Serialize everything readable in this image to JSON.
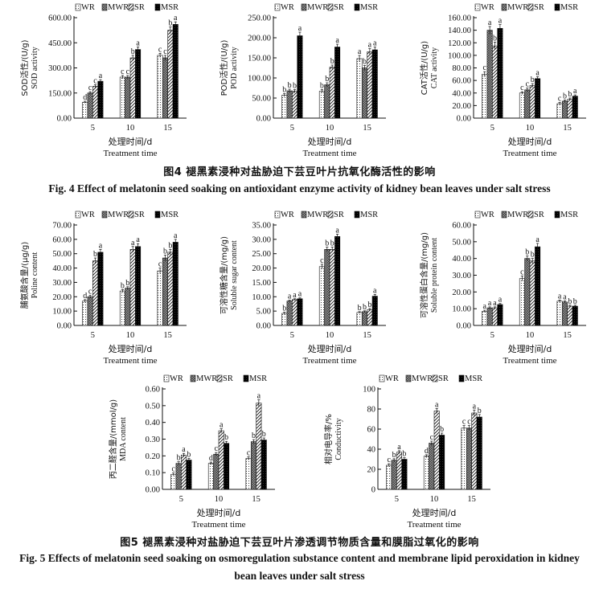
{
  "colors": {
    "axis": "#111111",
    "bar_fill_light": "#ffffff",
    "bar_dark": "#000000"
  },
  "fig4": {
    "caption_cn": "图4   褪黑素浸种对盐胁迫下芸豆叶片抗氧化酶活性的影响",
    "caption_en": "Fig. 4    Effect of melatonin seed soaking on antioxidant enzyme activity of kidney bean leaves under salt stress"
  },
  "fig5": {
    "caption_cn": "图5   褪黑素浸种对盐胁迫下芸豆叶片渗透调节物质含量和膜脂过氧化的影响",
    "caption_en_1": "Fig. 5    Effects of melatonin seed soaking on osmoregulation substance content and membrane lipid peroxidation in kidney",
    "caption_en_2": "bean leaves under salt stress"
  },
  "chart_data": [
    {
      "type": "bar",
      "id": "sod",
      "ylabel_cn": "SOD活性/(U/g)",
      "ylabel_en": "SOD activity",
      "xlabel_cn": "处理时间/d",
      "xlabel_en": "Treatment time",
      "categories": [
        "5",
        "10",
        "15"
      ],
      "ylim": [
        0,
        600
      ],
      "yticks": [
        0,
        150,
        300,
        450,
        600
      ],
      "ytick_labels": [
        "0.00",
        "150.00",
        "300.00",
        "450.00",
        "600.00"
      ],
      "legend": [
        "WR",
        "MWR",
        "SR",
        "MSR"
      ],
      "series": [
        {
          "name": "WR",
          "values": [
            95,
            245,
            375
          ],
          "errors": [
            6,
            10,
            12
          ],
          "sig": [
            "d",
            "c",
            "c"
          ]
        },
        {
          "name": "MWR",
          "values": [
            150,
            245,
            360
          ],
          "errors": [
            8,
            10,
            15
          ],
          "sig": [
            "c",
            "c",
            "c"
          ]
        },
        {
          "name": "SR",
          "values": [
            190,
            360,
            525
          ],
          "errors": [
            10,
            15,
            20
          ],
          "sig": [
            "c",
            "b",
            "b"
          ]
        },
        {
          "name": "MSR",
          "values": [
            220,
            410,
            560
          ],
          "errors": [
            10,
            15,
            15
          ],
          "sig": [
            "a",
            "a",
            "a"
          ]
        }
      ]
    },
    {
      "type": "bar",
      "id": "pod",
      "ylabel_cn": "POD活性/(U/g)",
      "ylabel_en": "POD activity",
      "xlabel_cn": "处理时间/d",
      "xlabel_en": "Treatment time",
      "categories": [
        "5",
        "10",
        "15"
      ],
      "ylim": [
        0,
        250
      ],
      "yticks": [
        0,
        50,
        100,
        150,
        200,
        250
      ],
      "ytick_labels": [
        "0.00",
        "50.00",
        "100.00",
        "150.00",
        "200.00",
        "250.00"
      ],
      "legend": [
        "WR",
        "MWR",
        "SR",
        "MSR"
      ],
      "series": [
        {
          "name": "WR",
          "values": [
            57,
            67,
            148
          ],
          "errors": [
            4,
            4,
            8
          ],
          "sig": [
            "b",
            "b",
            "a"
          ]
        },
        {
          "name": "MWR",
          "values": [
            68,
            83,
            125
          ],
          "errors": [
            4,
            5,
            6
          ],
          "sig": [
            "b",
            "b",
            "b"
          ]
        },
        {
          "name": "SR",
          "values": [
            67,
            127,
            165
          ],
          "errors": [
            4,
            5,
            8
          ],
          "sig": [
            "b",
            "b",
            "a"
          ]
        },
        {
          "name": "MSR",
          "values": [
            205,
            177,
            170
          ],
          "errors": [
            9,
            7,
            7
          ],
          "sig": [
            "a",
            "a",
            "a"
          ]
        }
      ]
    },
    {
      "type": "bar",
      "id": "cat",
      "ylabel_cn": "CAT活性/(U/g)",
      "ylabel_en": "CAT activity",
      "xlabel_cn": "处理时间/d",
      "xlabel_en": "Treatment time",
      "categories": [
        "5",
        "10",
        "15"
      ],
      "ylim": [
        0,
        160
      ],
      "yticks": [
        0,
        20,
        40,
        60,
        80,
        100,
        120,
        140,
        160
      ],
      "ytick_labels": [
        "0.00",
        "20.00",
        "40.00",
        "60.00",
        "80.00",
        "100.00",
        "120.00",
        "140.00",
        "160.00"
      ],
      "legend": [
        "WR",
        "MWR",
        "SR",
        "MSR"
      ],
      "series": [
        {
          "name": "WR",
          "values": [
            70,
            40,
            23
          ],
          "errors": [
            4,
            2,
            2
          ],
          "sig": [
            "c",
            "c",
            "c"
          ]
        },
        {
          "name": "MWR",
          "values": [
            140,
            45,
            27
          ],
          "errors": [
            6,
            3,
            2
          ],
          "sig": [
            "a",
            "c",
            "b"
          ]
        },
        {
          "name": "SR",
          "values": [
            115,
            52,
            30
          ],
          "errors": [
            6,
            3,
            2
          ],
          "sig": [
            "b",
            "b",
            "b"
          ]
        },
        {
          "name": "MSR",
          "values": [
            143,
            63,
            35
          ],
          "errors": [
            6,
            3,
            2
          ],
          "sig": [
            "a",
            "a",
            "a"
          ]
        }
      ]
    },
    {
      "type": "bar",
      "id": "proline",
      "ylabel_cn": "脯氨酸含量/(μg/g)",
      "ylabel_en": "Poline content",
      "xlabel_cn": "处理时间/d",
      "xlabel_en": "Treatment time",
      "categories": [
        "5",
        "10",
        "15"
      ],
      "ylim": [
        0,
        70
      ],
      "yticks": [
        0,
        10,
        20,
        30,
        40,
        50,
        60,
        70
      ],
      "ytick_labels": [
        "0.00",
        "10.00",
        "20.00",
        "30.00",
        "40.00",
        "50.00",
        "60.00",
        "70.00"
      ],
      "legend": [
        "WR",
        "MWR",
        "SR",
        "MSR"
      ],
      "series": [
        {
          "name": "WR",
          "values": [
            17,
            24,
            38
          ],
          "errors": [
            1,
            1,
            2
          ],
          "sig": [
            "d",
            "b",
            "c"
          ]
        },
        {
          "name": "MWR",
          "values": [
            20,
            26,
            47
          ],
          "errors": [
            1,
            1,
            2
          ],
          "sig": [
            "c",
            "b",
            "b"
          ]
        },
        {
          "name": "SR",
          "values": [
            45,
            53,
            51
          ],
          "errors": [
            2,
            2,
            2
          ],
          "sig": [
            "b",
            "a",
            "b"
          ]
        },
        {
          "name": "MSR",
          "values": [
            51,
            55,
            58
          ],
          "errors": [
            2,
            2,
            2
          ],
          "sig": [
            "a",
            "a",
            "a"
          ]
        }
      ]
    },
    {
      "type": "bar",
      "id": "sugar",
      "ylabel_cn": "可溶性糖含量/(mg/g)",
      "ylabel_en": "Soluble sugar content",
      "xlabel_cn": "处理时间/d",
      "xlabel_en": "Treatment time",
      "categories": [
        "5",
        "10",
        "15"
      ],
      "ylim": [
        0,
        35
      ],
      "yticks": [
        0,
        5,
        10,
        15,
        20,
        25,
        30,
        35
      ],
      "ytick_labels": [
        "0.00",
        "5.00",
        "10.00",
        "15.00",
        "20.00",
        "25.00",
        "30.00",
        "35.00"
      ],
      "legend": [
        "WR",
        "MWR",
        "SR",
        "MSR"
      ],
      "series": [
        {
          "name": "WR",
          "values": [
            4.2,
            20.5,
            4.5
          ],
          "errors": [
            0.4,
            0.8,
            0.3
          ],
          "sig": [
            "b",
            "c",
            "b"
          ]
        },
        {
          "name": "MWR",
          "values": [
            8.5,
            26.5,
            4.8
          ],
          "errors": [
            0.3,
            0.8,
            0.3
          ],
          "sig": [
            "a",
            "b",
            "b"
          ]
        },
        {
          "name": "SR",
          "values": [
            9.0,
            26.5,
            5.5
          ],
          "errors": [
            0.3,
            0.8,
            0.4
          ],
          "sig": [
            "a",
            "b",
            "b"
          ]
        },
        {
          "name": "MSR",
          "values": [
            9.3,
            31.0,
            10.2
          ],
          "errors": [
            0.3,
            0.8,
            0.6
          ],
          "sig": [
            "a",
            "a",
            "a"
          ]
        }
      ]
    },
    {
      "type": "bar",
      "id": "protein",
      "ylabel_cn": "可溶性蛋白含量/(mg/g)",
      "ylabel_en": "Soluble protein content",
      "xlabel_cn": "处理时间/d",
      "xlabel_en": "Treatment time",
      "categories": [
        "5",
        "10",
        "15"
      ],
      "ylim": [
        0,
        60
      ],
      "yticks": [
        0,
        10,
        20,
        30,
        40,
        50,
        60
      ],
      "ytick_labels": [
        "0.00",
        "10.00",
        "20.00",
        "30.00",
        "40.00",
        "50.00",
        "60.00"
      ],
      "legend": [
        "WR",
        "MWR",
        "SR",
        "MSR"
      ],
      "series": [
        {
          "name": "WR",
          "values": [
            8.5,
            28,
            14.5
          ],
          "errors": [
            0.6,
            1.5,
            0.7
          ],
          "sig": [
            "a",
            "c",
            "a"
          ]
        },
        {
          "name": "MWR",
          "values": [
            10.5,
            40,
            14
          ],
          "errors": [
            0.6,
            1.5,
            0.7
          ],
          "sig": [
            "a",
            "b",
            "a"
          ]
        },
        {
          "name": "SR",
          "values": [
            10.5,
            38.5,
            11.5
          ],
          "errors": [
            0.6,
            1.5,
            0.6
          ],
          "sig": [
            "a",
            "b",
            "b"
          ]
        },
        {
          "name": "MSR",
          "values": [
            12.5,
            47,
            11.5
          ],
          "errors": [
            0.6,
            2,
            0.6
          ],
          "sig": [
            "a",
            "a",
            "b"
          ]
        }
      ]
    },
    {
      "type": "bar",
      "id": "mda",
      "ylabel_cn": "丙二醛含量/(mmol/g)",
      "ylabel_en": "MDA content",
      "xlabel_cn": "处理时间/d",
      "xlabel_en": "Treatment time",
      "categories": [
        "5",
        "10",
        "15"
      ],
      "ylim": [
        0,
        0.6
      ],
      "yticks": [
        0,
        0.1,
        0.2,
        0.3,
        0.4,
        0.5,
        0.6
      ],
      "ytick_labels": [
        "0.00",
        "0.10",
        "0.20",
        "0.30",
        "0.40",
        "0.50",
        "0.60"
      ],
      "legend": [
        "WR",
        "MWR",
        "SR",
        "MSR"
      ],
      "series": [
        {
          "name": "WR",
          "values": [
            0.09,
            0.155,
            0.185
          ],
          "errors": [
            0.008,
            0.008,
            0.01
          ],
          "sig": [
            "c",
            "d",
            "c"
          ]
        },
        {
          "name": "MWR",
          "values": [
            0.155,
            0.21,
            0.285
          ],
          "errors": [
            0.01,
            0.01,
            0.012
          ],
          "sig": [
            "b",
            "c",
            "b"
          ]
        },
        {
          "name": "SR",
          "values": [
            0.205,
            0.35,
            0.515
          ],
          "errors": [
            0.01,
            0.012,
            0.02
          ],
          "sig": [
            "a",
            "a",
            "a"
          ]
        },
        {
          "name": "MSR",
          "values": [
            0.175,
            0.275,
            0.295
          ],
          "errors": [
            0.01,
            0.012,
            0.012
          ],
          "sig": [
            "b",
            "b",
            "b"
          ]
        }
      ]
    },
    {
      "type": "bar",
      "id": "conductivity",
      "ylabel_cn": "相对电导率/%",
      "ylabel_en": "Conductivity",
      "xlabel_cn": "处理时间/d",
      "xlabel_en": "Treatment time",
      "categories": [
        "5",
        "10",
        "15"
      ],
      "ylim": [
        0,
        100
      ],
      "yticks": [
        0,
        20,
        40,
        60,
        80,
        100
      ],
      "ytick_labels": [
        "0",
        "20",
        "40",
        "60",
        "80",
        "100"
      ],
      "legend": [
        "WR",
        "MWR",
        "SR",
        "MSR"
      ],
      "series": [
        {
          "name": "WR",
          "values": [
            24,
            33,
            61
          ],
          "errors": [
            1.5,
            1.5,
            2.5
          ],
          "sig": [
            "c",
            "d",
            "c"
          ]
        },
        {
          "name": "MWR",
          "values": [
            29,
            46,
            61
          ],
          "errors": [
            1.5,
            2,
            2.5
          ],
          "sig": [
            "b",
            "c",
            "c"
          ]
        },
        {
          "name": "SR",
          "values": [
            37,
            78,
            76
          ],
          "errors": [
            1.5,
            2.5,
            3
          ],
          "sig": [
            "a",
            "a",
            "a"
          ]
        },
        {
          "name": "MSR",
          "values": [
            30,
            54,
            72
          ],
          "errors": [
            1.5,
            2,
            2.5
          ],
          "sig": [
            "b",
            "b",
            "b"
          ]
        }
      ]
    }
  ]
}
